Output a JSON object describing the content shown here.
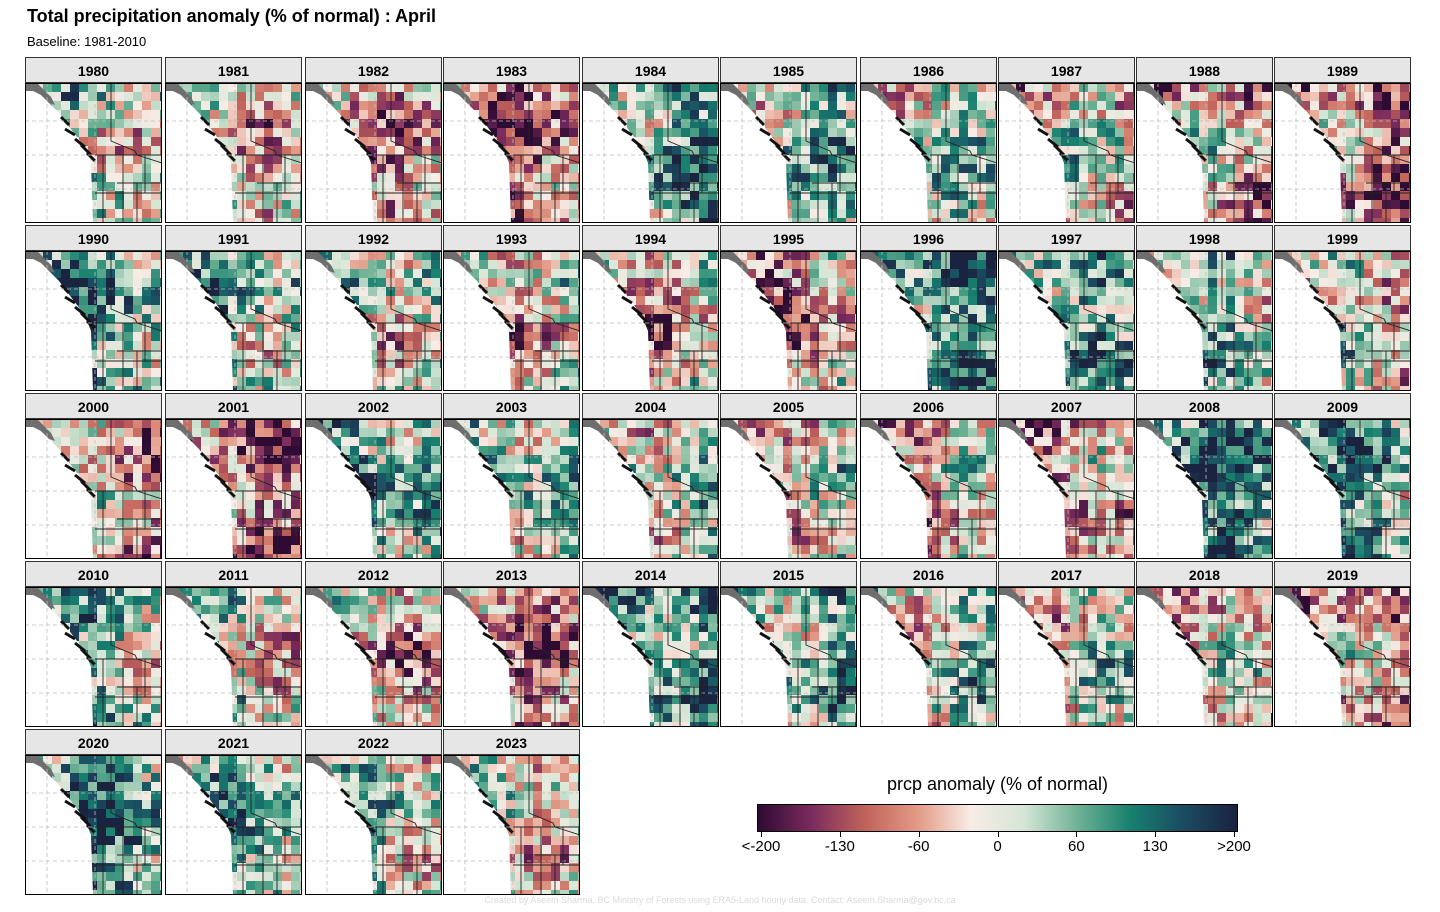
{
  "title": "Total precipitation anomaly (% of normal) : April",
  "subtitle": "Baseline: 1981-2010",
  "years": [
    "1980",
    "1981",
    "1982",
    "1983",
    "1984",
    "1985",
    "1986",
    "1987",
    "1988",
    "1989",
    "1990",
    "1991",
    "1992",
    "1993",
    "1994",
    "1995",
    "1996",
    "1997",
    "1998",
    "1999",
    "2000",
    "2001",
    "2002",
    "2003",
    "2004",
    "2005",
    "2006",
    "2007",
    "2008",
    "2009",
    "2010",
    "2011",
    "2012",
    "2013",
    "2014",
    "2015",
    "2016",
    "2017",
    "2018",
    "2019",
    "2020",
    "2021",
    "2022",
    "2023"
  ],
  "legend": {
    "title": "prcp anomaly (% of normal)",
    "labels": [
      "<-200",
      "-130",
      "-60",
      "0",
      "60",
      "130",
      ">200"
    ],
    "colors": [
      "#2e0b32",
      "#7a2b5e",
      "#c0625a",
      "#e39a86",
      "#f8ece6",
      "#d5e6d6",
      "#6fb295",
      "#17806f",
      "#1b4b61",
      "#1a2340"
    ]
  },
  "credit": "Created by Aseem Sharma, BC Ministry of Forests using ERA5-Land hourly data. Contact: Aseem.Sharma@gov.bc.ca"
}
